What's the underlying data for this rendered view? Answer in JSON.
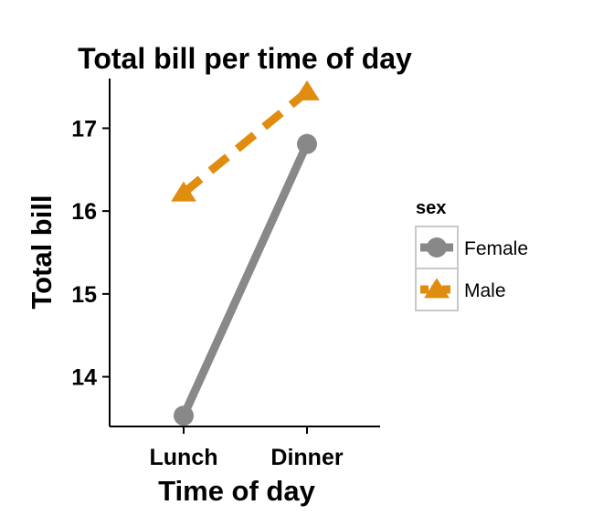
{
  "chart_data": {
    "type": "line",
    "title": "Total bill per time of day",
    "xlabel": "Time of day",
    "ylabel": "Total bill",
    "categories": [
      "Lunch",
      "Dinner"
    ],
    "ylim": [
      13.4,
      17.6
    ],
    "yticks": [
      14,
      15,
      16,
      17
    ],
    "grid": false,
    "legend_title": "sex",
    "legend_position": "right",
    "series": [
      {
        "name": "Female",
        "values": [
          13.53,
          16.81
        ],
        "color": "#888888",
        "linestyle": "solid",
        "marker": "circle"
      },
      {
        "name": "Male",
        "values": [
          16.22,
          17.44
        ],
        "color": "#E08C0E",
        "linestyle": "dashed",
        "marker": "triangle"
      }
    ]
  }
}
